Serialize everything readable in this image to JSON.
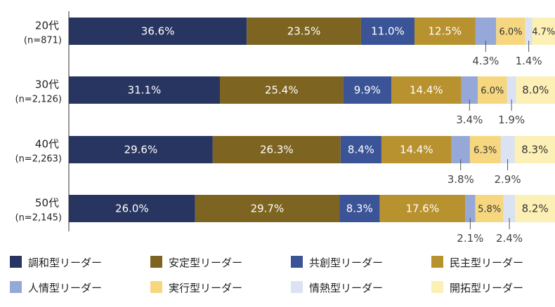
{
  "chart_data": {
    "type": "bar",
    "orientation": "horizontal",
    "stacked": true,
    "unit": "%",
    "title": "",
    "xlabel": "",
    "ylabel": "",
    "xlim": [
      0,
      100
    ],
    "grid": false,
    "legend_position": "bottom",
    "categories": [
      {
        "label": "20代",
        "n": "(n=871)"
      },
      {
        "label": "30代",
        "n": "(n=2,126)"
      },
      {
        "label": "40代",
        "n": "(n=2,263)"
      },
      {
        "label": "50代",
        "n": "(n=2,145)"
      }
    ],
    "series": [
      {
        "key": "chowa",
        "name": "調和型リーダー",
        "color": "#283561",
        "text_color": "#ffffff",
        "values": [
          36.6,
          31.1,
          29.6,
          26.0
        ]
      },
      {
        "key": "antei",
        "name": "安定型リーダー",
        "color": "#7d6420",
        "text_color": "#ffffff",
        "values": [
          23.5,
          25.4,
          26.3,
          29.7
        ]
      },
      {
        "key": "kyoso",
        "name": "共創型リーダー",
        "color": "#3b5497",
        "text_color": "#ffffff",
        "values": [
          11.0,
          9.9,
          8.4,
          8.3
        ]
      },
      {
        "key": "minshu",
        "name": "民主型リーダー",
        "color": "#b8922e",
        "text_color": "#ffffff",
        "values": [
          12.5,
          14.4,
          14.4,
          17.6
        ]
      },
      {
        "key": "ninjo",
        "name": "人情型リーダー",
        "color": "#95a8d8",
        "text_color": "#444444",
        "values": [
          4.3,
          3.4,
          3.8,
          2.1
        ]
      },
      {
        "key": "jikko",
        "name": "実行型リーダー",
        "color": "#f6d77f",
        "text_color": "#333333",
        "values": [
          6.0,
          6.0,
          6.3,
          5.8
        ]
      },
      {
        "key": "jonetsu",
        "name": "情熱型リーダー",
        "color": "#dbe2f1",
        "text_color": "#444444",
        "values": [
          1.4,
          1.9,
          2.9,
          2.4
        ]
      },
      {
        "key": "kaitaku",
        "name": "開拓型リーダー",
        "color": "#fcf0b6",
        "text_color": "#333333",
        "values": [
          4.7,
          8.0,
          8.3,
          8.2
        ]
      }
    ],
    "data_labels": [
      [
        "36.6%",
        "23.5%",
        "11.0%",
        "12.5%",
        "4.3%",
        "6.0%",
        "1.4%",
        "4.7%"
      ],
      [
        "31.1%",
        "25.4%",
        "9.9%",
        "14.4%",
        "3.4%",
        "6.0%",
        "1.9%",
        "8.0%"
      ],
      [
        "29.6%",
        "26.3%",
        "8.4%",
        "14.4%",
        "3.8%",
        "6.3%",
        "2.9%",
        "8.3%"
      ],
      [
        "26.0%",
        "29.7%",
        "8.3%",
        "17.6%",
        "2.1%",
        "5.8%",
        "2.4%",
        "8.2%"
      ]
    ],
    "callout_series": [
      "ninjo",
      "jonetsu"
    ]
  }
}
